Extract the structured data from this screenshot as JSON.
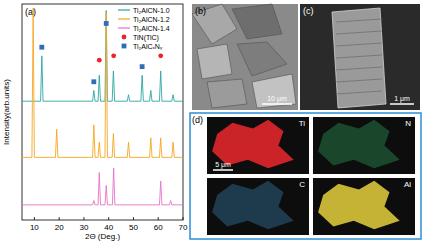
{
  "chart_data": {
    "type": "line",
    "panel_label": "(a)",
    "x_label": "2Θ (Deg.)",
    "y_label": "Intensity(arb.units)",
    "xlim": [
      5,
      70
    ],
    "xticks": [
      10,
      20,
      30,
      40,
      50,
      60,
      70
    ],
    "ylim": [
      0,
      100
    ],
    "yticks": [],
    "tick_labels": "x",
    "legend": "upper right",
    "series": [
      {
        "name": "Ti₂AlCN-1.0",
        "color": "#2ca6a4",
        "x": [
          5,
          12.5,
          13,
          13.5,
          33.5,
          34,
          34.5,
          35.7,
          36.2,
          36.7,
          38.5,
          39,
          39.5,
          41.4,
          41.9,
          42.4,
          47.5,
          48,
          48.5,
          53,
          53.5,
          54,
          56.5,
          57,
          57.5,
          60.5,
          61,
          61.5,
          65.5,
          66,
          66.5,
          70
        ],
        "values": [
          55,
          55,
          76,
          55,
          55,
          60,
          55,
          55,
          67,
          55,
          55,
          97,
          55,
          55,
          69,
          55,
          55,
          58,
          55,
          55,
          67,
          55,
          55,
          60,
          55,
          55,
          69,
          55,
          55,
          58,
          55,
          55
        ]
      },
      {
        "name": "Ti₂AlCN-1.2",
        "color": "#f5a623",
        "x": [
          5,
          9,
          9.5,
          10,
          18.5,
          19,
          19.5,
          33.5,
          34,
          34.5,
          35.7,
          36.2,
          36.7,
          38.5,
          39,
          39.5,
          41.4,
          41.9,
          42.4,
          47.5,
          48,
          48.5,
          56.5,
          57,
          57.5,
          60.5,
          61,
          61.5,
          65.5,
          66,
          66.5,
          70
        ],
        "values": [
          29,
          29,
          98,
          29,
          29,
          42,
          29,
          29,
          44,
          29,
          29,
          36,
          29,
          29,
          96,
          29,
          29,
          40,
          29,
          29,
          36,
          29,
          29,
          38,
          29,
          29,
          38,
          29,
          29,
          36,
          29,
          29
        ]
      },
      {
        "name": "Ti₂AlCN-1.4",
        "color": "#e573c7",
        "x": [
          5,
          33.5,
          34,
          34.5,
          35.7,
          36.2,
          36.7,
          38.5,
          39,
          39.5,
          41.5,
          42,
          42.5,
          60.5,
          61,
          61.5,
          64.5,
          65,
          65.5,
          70
        ],
        "values": [
          7,
          7,
          9,
          7,
          7,
          22,
          7,
          7,
          16,
          7,
          7,
          24,
          7,
          7,
          18,
          7,
          7,
          9,
          7,
          7
        ]
      }
    ],
    "markers": [
      {
        "name": "TiN(TiC)",
        "color": "#e8262b",
        "marker": "circle",
        "x": [
          36.2,
          42,
          61
        ],
        "y": [
          74,
          76,
          76
        ]
      },
      {
        "name": "Ti₂AlCₓNᵧ",
        "color": "#2f6db5",
        "marker": "square",
        "x": [
          13,
          34,
          39,
          53.5
        ],
        "y": [
          80,
          64,
          91,
          71
        ]
      }
    ]
  },
  "panels": {
    "b": {
      "label": "(b)",
      "scale_bar": "10 μm"
    },
    "c": {
      "label": "(c)",
      "scale_bar": "1 μm"
    },
    "d": {
      "label": "(d)",
      "scale_bar": "5 μm",
      "maps": [
        {
          "element": "Ti",
          "color": "#e0262b"
        },
        {
          "element": "N",
          "color": "#2f9e5a"
        },
        {
          "element": "C",
          "color": "#3a7fb0"
        },
        {
          "element": "Al",
          "color": "#d9c53a"
        }
      ]
    }
  }
}
